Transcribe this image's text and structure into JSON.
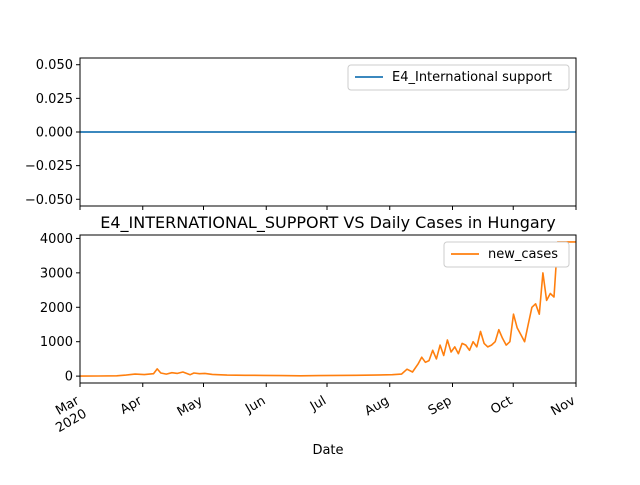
{
  "chart_data": [
    {
      "type": "line",
      "title": "",
      "xlabel": "",
      "ylabel": "",
      "ylim": [
        -0.055,
        0.055
      ],
      "yticks": [
        "0.050",
        "0.025",
        "0.000",
        "−0.025",
        "−0.050"
      ],
      "ytick_values": [
        0.05,
        0.025,
        0.0,
        -0.025,
        -0.05
      ],
      "grid": false,
      "legend_position": "top-right",
      "series": [
        {
          "name": "E4_International support",
          "color": "#1f77b4",
          "values": [
            0,
            0
          ]
        }
      ]
    },
    {
      "type": "line",
      "title": "E4_INTERNATIONAL_SUPPORT VS Daily Cases in Hungary",
      "xlabel": "Date",
      "ylabel": "",
      "ylim": [
        -200,
        4100
      ],
      "yticks": [
        "0",
        "1000",
        "2000",
        "3000",
        "4000"
      ],
      "ytick_values": [
        0,
        1000,
        2000,
        3000,
        4000
      ],
      "xtick_labels": [
        "Mar\n2020",
        "Apr",
        "May",
        "Jun",
        "Jul",
        "Aug",
        "Sep",
        "Oct",
        "Nov"
      ],
      "grid": false,
      "legend_position": "top-right",
      "series": [
        {
          "name": "new_cases",
          "color": "#ff7f0e",
          "x_day": [
            0,
            10,
            20,
            25,
            30,
            35,
            40,
            42,
            44,
            47,
            50,
            53,
            56,
            60,
            62,
            65,
            68,
            72,
            75,
            80,
            90,
            100,
            110,
            120,
            130,
            140,
            150,
            160,
            170,
            175,
            178,
            181,
            184,
            186,
            188,
            190,
            192,
            194,
            196,
            198,
            200,
            202,
            204,
            206,
            208,
            210,
            212,
            214,
            216,
            218,
            220,
            222,
            224,
            226,
            228,
            230,
            232,
            234,
            236,
            238,
            240,
            242,
            244,
            246,
            248,
            250,
            252,
            254,
            256,
            258,
            260,
            262,
            264,
            266,
            268,
            270
          ],
          "values": [
            0,
            2,
            10,
            30,
            60,
            45,
            70,
            210,
            90,
            60,
            100,
            80,
            120,
            40,
            90,
            70,
            80,
            50,
            40,
            30,
            25,
            20,
            15,
            10,
            15,
            20,
            25,
            30,
            40,
            60,
            200,
            120,
            350,
            550,
            400,
            450,
            750,
            500,
            900,
            600,
            1050,
            700,
            850,
            650,
            950,
            900,
            750,
            1000,
            850,
            1300,
            950,
            850,
            900,
            1000,
            1350,
            1100,
            900,
            1000,
            1800,
            1400,
            1200,
            1000,
            1500,
            2000,
            2100,
            1800,
            3000,
            2200,
            2400,
            2300,
            3900,
            3900,
            3900,
            3900,
            3900,
            3900
          ]
        }
      ]
    }
  ]
}
